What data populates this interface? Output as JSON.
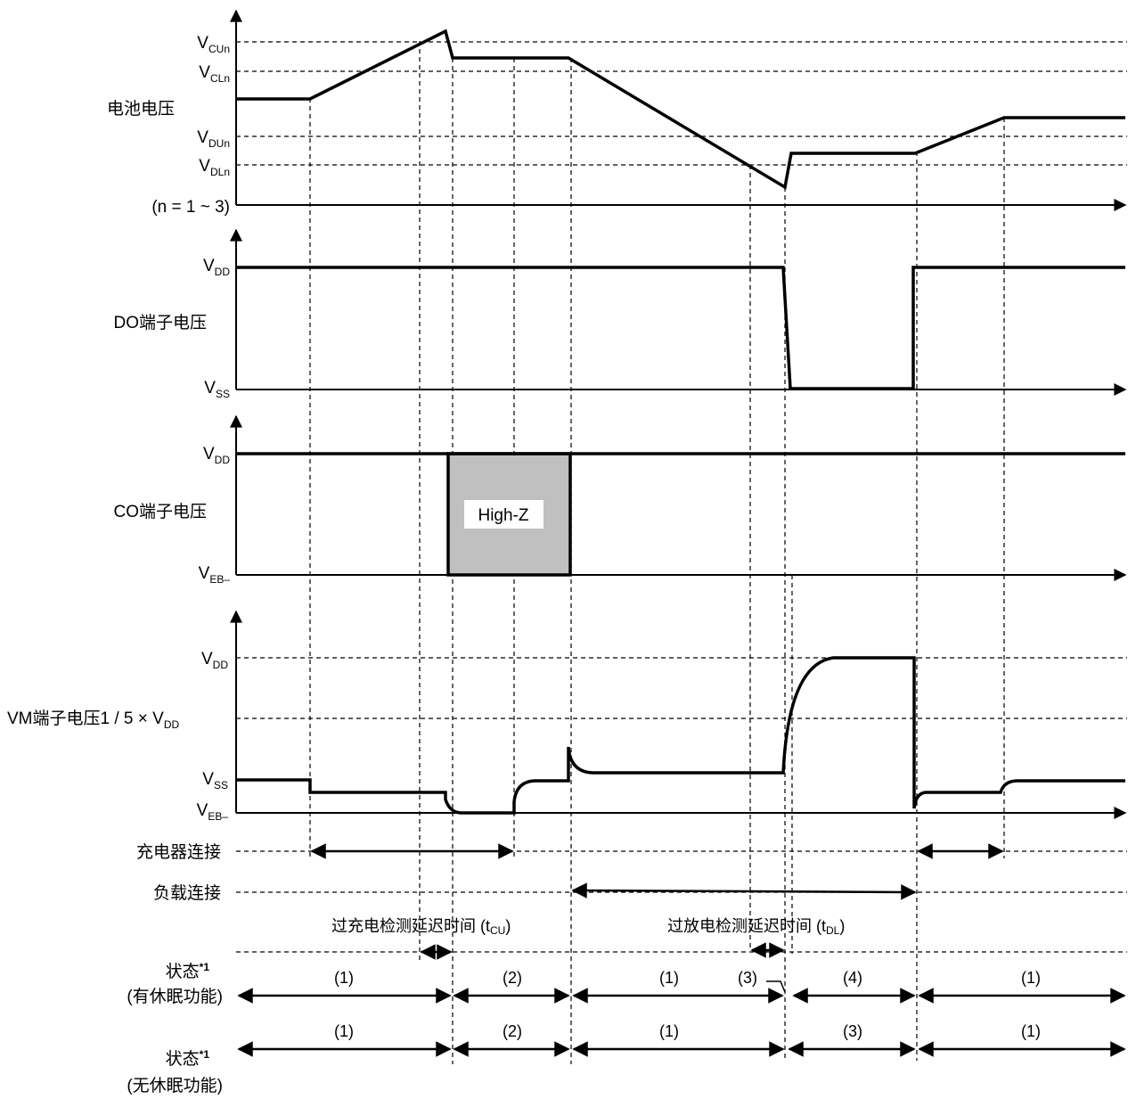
{
  "panels": {
    "battery": {
      "label": "电池电压",
      "levels": [
        {
          "main": "V",
          "sub": "CUn"
        },
        {
          "main": "V",
          "sub": "CLn"
        },
        {
          "main": "V",
          "sub": "DUn"
        },
        {
          "main": "V",
          "sub": "DLn"
        }
      ],
      "note": "(n = 1 ~ 3)"
    },
    "do_pin": {
      "label": "DO端子电压",
      "levels": [
        {
          "main": "V",
          "sub": "DD"
        },
        {
          "main": "V",
          "sub": "SS"
        }
      ]
    },
    "co_pin": {
      "label": "CO端子电压",
      "levels": [
        {
          "main": "V",
          "sub": "DD"
        },
        {
          "main": "V",
          "sub": "EB–"
        }
      ],
      "highz": "High-Z"
    },
    "vm_pin": {
      "label": "VM端子电压",
      "levels": [
        {
          "main": "V",
          "sub": "DD"
        },
        {
          "main": "1 / 5 × V",
          "sub": "DD"
        },
        {
          "main": "V",
          "sub": "SS"
        },
        {
          "main": "V",
          "sub": "EB–"
        }
      ]
    }
  },
  "events": {
    "charger": "充电器连接",
    "load": "负载连接",
    "tcu": {
      "main": "过充电检测延迟时间 (t",
      "sub": "CU",
      "tail": ")"
    },
    "tdl": {
      "main": "过放电检测延迟时间 (t",
      "sub": "DL",
      "tail": ")"
    }
  },
  "states": {
    "row1": {
      "label": "状态",
      "mark": "*1",
      "label2": "(有休眠功能)",
      "items": [
        "(1)",
        "(2)",
        "(1)",
        "(3)",
        "(4)",
        "(1)"
      ]
    },
    "row2": {
      "label": "状态",
      "mark": "*1",
      "label2": "(无休眠功能)",
      "items": [
        "(1)",
        "(2)",
        "(1)",
        "(3)",
        "(1)"
      ]
    }
  }
}
